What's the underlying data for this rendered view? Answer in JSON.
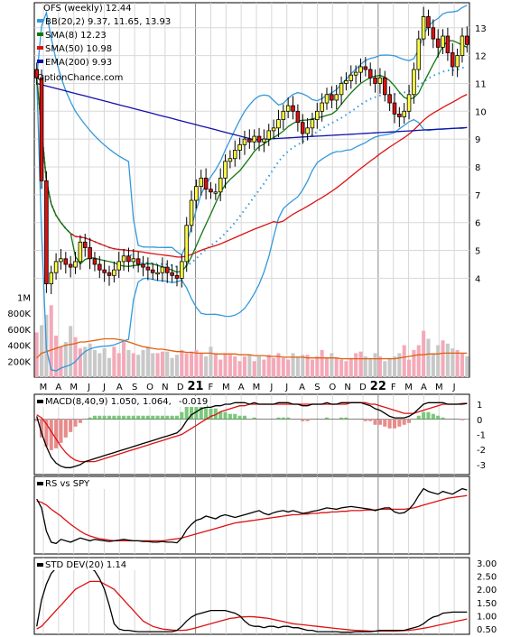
{
  "chart_data": [
    {
      "type": "candlestick",
      "title": "OFS (weekly) 12.44",
      "watermark": "OptionChance.com",
      "legend": [
        {
          "label": "BB(20,2) 9.37, 11.65, 13.93",
          "color": "#3399dd"
        },
        {
          "label": "SMA(8) 12.23",
          "color": "#117711"
        },
        {
          "label": "SMA(50) 10.98",
          "color": "#dd1111"
        },
        {
          "label": "EMA(200) 9.93",
          "color": "#1111aa"
        }
      ],
      "legend_position": "top-left",
      "y_axis_position": "right",
      "y_ticks": [
        "4",
        "5",
        "6",
        "7",
        "8",
        "9",
        "10",
        "11",
        "12",
        "13"
      ],
      "ylim": [
        3.3,
        13.9
      ],
      "x_labels": [
        "M",
        "A",
        "M",
        "J",
        "J",
        "A",
        "S",
        "O",
        "N",
        "D",
        "21",
        "F",
        "M",
        "A",
        "M",
        "J",
        "J",
        "A",
        "S",
        "O",
        "N",
        "D",
        "22",
        "F",
        "M",
        "A",
        "M",
        "J"
      ],
      "close_series": [
        11.2,
        7.5,
        3.8,
        4.2,
        4.6,
        4.7,
        4.5,
        4.4,
        4.6,
        5.3,
        5.1,
        4.7,
        4.5,
        4.3,
        4.2,
        4.1,
        4.3,
        4.6,
        4.8,
        4.6,
        4.7,
        4.5,
        4.4,
        4.3,
        4.2,
        4.2,
        4.4,
        4.2,
        4.1,
        4.0,
        4.6,
        5.9,
        6.8,
        7.3,
        7.6,
        7.2,
        7.1,
        7.1,
        7.6,
        8.2,
        8.3,
        8.6,
        8.8,
        9.0,
        8.9,
        9.1,
        8.9,
        9.0,
        9.3,
        9.4,
        9.7,
        10.0,
        10.2,
        10.0,
        9.6,
        9.2,
        9.4,
        9.7,
        10.0,
        10.3,
        10.6,
        10.4,
        10.6,
        11.0,
        11.1,
        11.3,
        11.4,
        11.6,
        11.5,
        11.2,
        11.0,
        11.2,
        10.6,
        10.3,
        9.9,
        9.8,
        10.0,
        10.6,
        11.5,
        12.6,
        13.4,
        13.0,
        12.6,
        12.3,
        12.7,
        12.1,
        11.6,
        12.0,
        12.7,
        12.4
      ],
      "volume": {
        "y_ticks": [
          "200K",
          "400K",
          "600K",
          "800K",
          "1M"
        ],
        "volume_series": [
          560,
          650,
          780,
          900,
          520,
          380,
          440,
          640,
          500,
          360,
          380,
          420,
          340,
          300,
          360,
          240,
          380,
          300,
          460,
          340,
          300,
          280,
          340,
          380,
          300,
          300,
          320,
          320,
          240,
          280,
          340,
          300,
          320,
          340,
          300,
          260,
          380,
          300,
          220,
          300,
          280,
          260,
          200,
          260,
          280,
          200,
          260,
          220,
          280,
          240,
          300,
          240,
          220,
          300,
          260,
          280,
          280,
          220,
          260,
          340,
          240,
          300,
          240,
          220,
          200,
          240,
          300,
          320,
          260,
          240,
          300,
          260,
          200,
          240,
          260,
          300,
          400,
          220,
          340,
          400,
          580,
          480,
          300,
          400,
          460,
          420,
          360,
          340,
          300,
          260
        ],
        "volume_average_series": [
          240,
          300,
          320,
          340,
          360,
          380,
          400,
          410,
          420,
          440,
          440,
          450,
          460,
          470,
          480,
          480,
          480,
          470,
          460,
          440,
          420,
          400,
          380,
          370,
          360,
          350,
          350,
          340,
          330,
          320,
          320,
          310,
          310,
          300,
          300,
          300,
          300,
          290,
          290,
          290,
          290,
          290,
          280,
          280,
          280,
          270,
          270,
          270,
          260,
          260,
          260,
          250,
          250,
          250,
          250,
          250,
          240,
          240,
          240,
          240,
          240,
          240,
          240,
          230,
          230,
          230,
          230,
          230,
          230,
          230,
          230,
          230,
          230,
          230,
          230,
          240,
          250,
          260,
          270,
          280,
          280,
          290,
          290,
          290,
          300,
          300,
          300,
          300,
          300,
          300
        ]
      },
      "indicators": [
        {
          "name": "MACD",
          "label": "MACD(8,40,9) 1.050,",
          "value2": "1.064,",
          "value2_color": "#dd1111",
          "value3": "-0.019",
          "value3_color": "#1133cc",
          "y_ticks": [
            "1",
            "0",
            "-1",
            "-2",
            "-3"
          ],
          "macd_series": [
            0.2,
            -0.9,
            -1.8,
            -2.5,
            -2.9,
            -3.1,
            -3.2,
            -3.2,
            -3.1,
            -3.0,
            -2.8,
            -2.7,
            -2.6,
            -2.5,
            -2.4,
            -2.3,
            -2.2,
            -2.1,
            -2.0,
            -1.9,
            -1.8,
            -1.7,
            -1.6,
            -1.5,
            -1.4,
            -1.3,
            -1.2,
            -1.1,
            -1.0,
            -0.9,
            -0.6,
            -0.1,
            0.3,
            0.5,
            0.7,
            0.8,
            0.8,
            0.9,
            0.9,
            1.0,
            1.0,
            1.1,
            1.1,
            1.1,
            1.0,
            1.1,
            1.0,
            1.0,
            1.0,
            1.0,
            1.1,
            1.1,
            1.1,
            1.0,
            1.0,
            0.9,
            0.9,
            1.0,
            1.0,
            1.0,
            1.1,
            1.0,
            1.0,
            1.1,
            1.1,
            1.1,
            1.1,
            1.1,
            1.0,
            0.9,
            0.7,
            0.6,
            0.4,
            0.2,
            0.1,
            0.1,
            0.1,
            0.2,
            0.4,
            0.7,
            1.0,
            1.1,
            1.1,
            1.1,
            1.1,
            1.0,
            1.0,
            1.0,
            1.0,
            1.05
          ],
          "signal_series": [
            0.3,
            0.1,
            -0.3,
            -0.8,
            -1.3,
            -1.8,
            -2.2,
            -2.5,
            -2.7,
            -2.8,
            -2.8,
            -2.8,
            -2.8,
            -2.7,
            -2.6,
            -2.5,
            -2.4,
            -2.3,
            -2.2,
            -2.1,
            -2.0,
            -1.9,
            -1.8,
            -1.7,
            -1.6,
            -1.5,
            -1.4,
            -1.3,
            -1.2,
            -1.1,
            -1.0,
            -0.8,
            -0.6,
            -0.4,
            -0.2,
            0.0,
            0.2,
            0.3,
            0.5,
            0.6,
            0.7,
            0.8,
            0.9,
            0.9,
            1.0,
            1.0,
            1.0,
            1.0,
            1.0,
            1.0,
            1.0,
            1.0,
            1.0,
            1.0,
            1.0,
            1.0,
            1.0,
            1.0,
            1.0,
            1.0,
            1.0,
            1.0,
            1.0,
            1.0,
            1.0,
            1.1,
            1.1,
            1.1,
            1.1,
            1.0,
            1.0,
            0.9,
            0.8,
            0.7,
            0.6,
            0.5,
            0.4,
            0.4,
            0.4,
            0.5,
            0.6,
            0.7,
            0.8,
            0.9,
            1.0,
            1.0,
            1.0,
            1.0,
            1.05,
            1.064
          ]
        },
        {
          "name": "RS vs SPY",
          "label": "RS vs SPY",
          "rs_series": [
            0.75,
            0.62,
            0.28,
            0.12,
            0.1,
            0.16,
            0.14,
            0.12,
            0.15,
            0.18,
            0.16,
            0.14,
            0.16,
            0.15,
            0.14,
            0.13,
            0.14,
            0.15,
            0.16,
            0.15,
            0.14,
            0.14,
            0.13,
            0.13,
            0.12,
            0.12,
            0.13,
            0.12,
            0.12,
            0.11,
            0.18,
            0.3,
            0.38,
            0.44,
            0.46,
            0.5,
            0.48,
            0.46,
            0.5,
            0.52,
            0.5,
            0.48,
            0.5,
            0.52,
            0.54,
            0.56,
            0.58,
            0.54,
            0.52,
            0.55,
            0.57,
            0.58,
            0.56,
            0.58,
            0.56,
            0.54,
            0.55,
            0.57,
            0.58,
            0.6,
            0.62,
            0.61,
            0.6,
            0.62,
            0.63,
            0.64,
            0.63,
            0.62,
            0.61,
            0.6,
            0.58,
            0.6,
            0.62,
            0.62,
            0.56,
            0.54,
            0.55,
            0.6,
            0.68,
            0.8,
            0.9,
            0.86,
            0.84,
            0.82,
            0.86,
            0.84,
            0.82,
            0.86,
            0.9,
            0.88
          ],
          "rs_average_series": [
            0.72,
            0.7,
            0.66,
            0.6,
            0.55,
            0.5,
            0.44,
            0.38,
            0.33,
            0.28,
            0.24,
            0.21,
            0.19,
            0.17,
            0.16,
            0.15,
            0.14,
            0.14,
            0.14,
            0.14,
            0.14,
            0.14,
            0.14,
            0.14,
            0.14,
            0.14,
            0.14,
            0.15,
            0.16,
            0.17,
            0.18,
            0.2,
            0.22,
            0.24,
            0.26,
            0.28,
            0.3,
            0.32,
            0.34,
            0.36,
            0.38,
            0.4,
            0.41,
            0.42,
            0.43,
            0.44,
            0.45,
            0.46,
            0.47,
            0.48,
            0.49,
            0.5,
            0.51,
            0.52,
            0.52,
            0.53,
            0.53,
            0.54,
            0.54,
            0.55,
            0.55,
            0.56,
            0.56,
            0.57,
            0.57,
            0.58,
            0.58,
            0.58,
            0.59,
            0.59,
            0.59,
            0.6,
            0.6,
            0.6,
            0.6,
            0.6,
            0.6,
            0.61,
            0.62,
            0.64,
            0.66,
            0.68,
            0.7,
            0.72,
            0.74,
            0.76,
            0.77,
            0.78,
            0.79,
            0.8
          ]
        },
        {
          "name": "STD DEV",
          "label": "STD DEV(20) 1.14",
          "y_ticks": [
            "3.00",
            "2.50",
            "2.00",
            "1.50",
            "1.00",
            "0.50"
          ],
          "ylim": [
            0.3,
            3.2
          ],
          "std_series": [
            0.6,
            1.6,
            2.2,
            2.6,
            2.8,
            3.0,
            3.1,
            3.1,
            3.0,
            3.0,
            2.9,
            2.8,
            2.7,
            2.4,
            2.0,
            1.4,
            0.7,
            0.5,
            0.45,
            0.45,
            0.42,
            0.4,
            0.4,
            0.4,
            0.4,
            0.4,
            0.4,
            0.4,
            0.4,
            0.45,
            0.6,
            0.8,
            0.95,
            1.05,
            1.1,
            1.15,
            1.2,
            1.2,
            1.2,
            1.2,
            1.15,
            1.1,
            1.0,
            0.8,
            0.65,
            0.6,
            0.6,
            0.55,
            0.6,
            0.6,
            0.55,
            0.6,
            0.6,
            0.55,
            0.55,
            0.5,
            0.45,
            0.45,
            0.4,
            0.4,
            0.4,
            0.4,
            0.4,
            0.38,
            0.38,
            0.38,
            0.4,
            0.4,
            0.4,
            0.4,
            0.42,
            0.45,
            0.45,
            0.45,
            0.45,
            0.45,
            0.45,
            0.5,
            0.55,
            0.6,
            0.7,
            0.85,
            0.95,
            1.0,
            1.1,
            1.12,
            1.14,
            1.14,
            1.14,
            1.14
          ],
          "std_average_series": [
            0.5,
            0.6,
            0.8,
            1.0,
            1.2,
            1.4,
            1.6,
            1.8,
            2.0,
            2.1,
            2.2,
            2.3,
            2.3,
            2.3,
            2.2,
            2.1,
            2.0,
            1.8,
            1.6,
            1.4,
            1.2,
            1.0,
            0.8,
            0.7,
            0.6,
            0.55,
            0.5,
            0.48,
            0.46,
            0.45,
            0.45,
            0.46,
            0.5,
            0.55,
            0.6,
            0.65,
            0.7,
            0.75,
            0.8,
            0.85,
            0.9,
            0.92,
            0.95,
            0.96,
            0.97,
            0.96,
            0.94,
            0.92,
            0.9,
            0.86,
            0.82,
            0.78,
            0.74,
            0.7,
            0.68,
            0.66,
            0.64,
            0.62,
            0.6,
            0.58,
            0.56,
            0.54,
            0.52,
            0.5,
            0.48,
            0.46,
            0.45,
            0.44,
            0.43,
            0.42,
            0.42,
            0.42,
            0.42,
            0.42,
            0.42,
            0.43,
            0.44,
            0.45,
            0.47,
            0.5,
            0.53,
            0.56,
            0.6,
            0.64,
            0.68,
            0.72,
            0.76,
            0.8,
            0.84,
            0.88
          ]
        }
      ]
    }
  ],
  "colors": {
    "bb": "#3399dd",
    "sma8": "#117711",
    "sma50": "#dd1111",
    "ema200": "#1111aa",
    "up_candle": "#ffff44",
    "down_candle": "#dd1111",
    "vol_up": "#f4a9b8",
    "vol_down": "#c8c8c8",
    "vol_avg": "#e06010",
    "grid": "#d8d8d8"
  }
}
